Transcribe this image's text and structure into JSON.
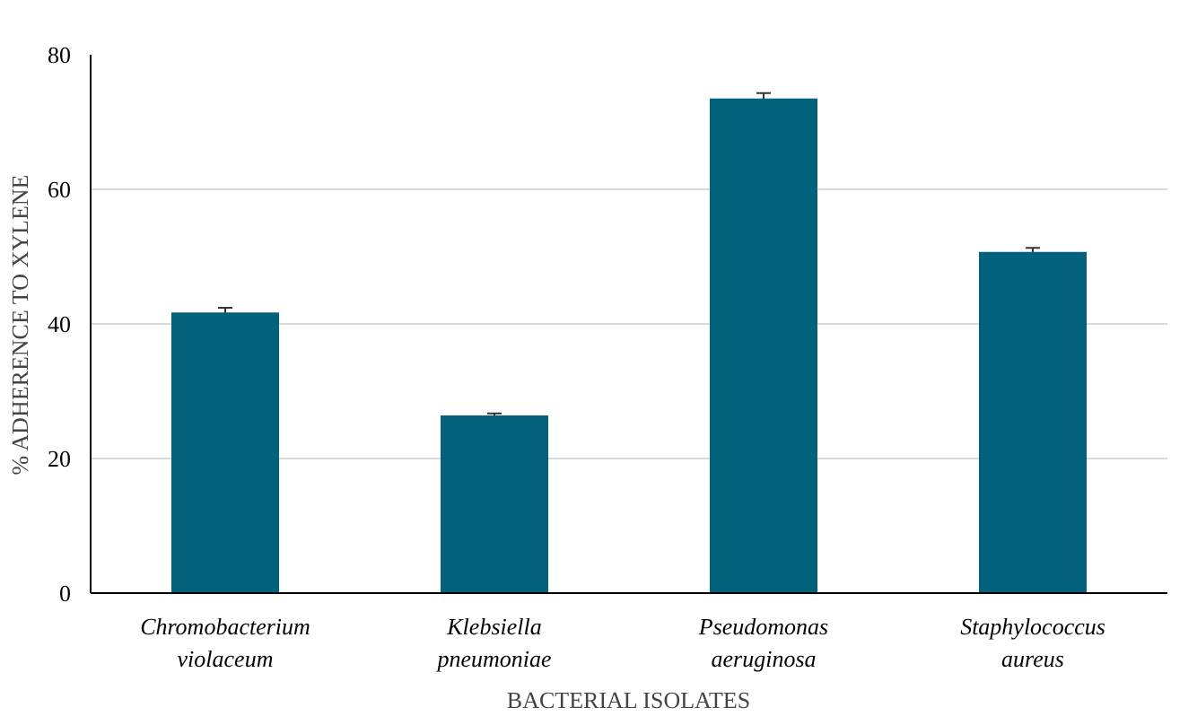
{
  "chart_data": {
    "type": "bar",
    "xlabel": "BACTERIAL ISOLATES",
    "ylabel": "% ADHERENCE TO XYLENE",
    "categories": [
      "Chromobacterium\nviolaceum",
      "Klebsiella\npneumoniae",
      "Pseudomonas\naeruginosa",
      "Staphylococcus\naureus"
    ],
    "values": [
      41.7,
      26.4,
      73.5,
      50.7
    ],
    "errors": [
      0.7,
      0.3,
      0.8,
      0.6
    ],
    "color": "#02627c",
    "ylim": [
      0,
      80
    ],
    "yticks": [
      0,
      20,
      40,
      60,
      80
    ],
    "grid": "y"
  }
}
